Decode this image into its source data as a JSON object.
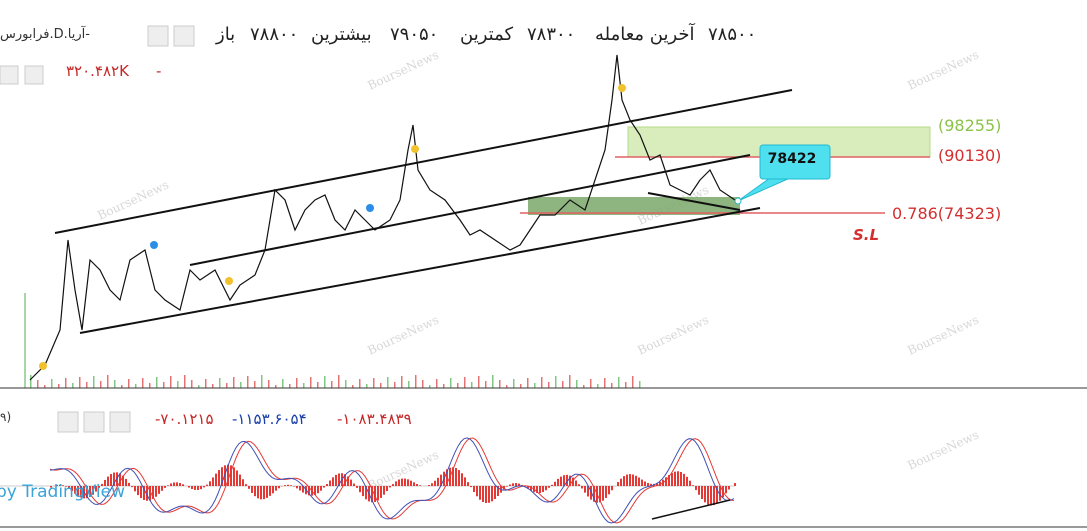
{
  "header": {
    "ticker": "فرابورس.D.آریا-",
    "open_value": "۷۸۸۰۰",
    "open_label": "باز",
    "high_value": "۷۹۰۵۰",
    "high_label": "بیشترین",
    "low_value": "۷۸۳۰۰",
    "low_label": "کمترین",
    "last_value": "۷۸۵۰۰",
    "last_label": "آخرین معامله"
  },
  "volume": {
    "value": "۳۲۰.۴۸۲K",
    "dash": "-"
  },
  "annotations": {
    "target_high": "(98255)",
    "target_low": "(90130)",
    "stop_level": "0.786(74323)",
    "stop_label": "S.L",
    "callout": "78422"
  },
  "oscillator": {
    "param": "۹)",
    "value_1": "-۷۰.۱۲۱۵",
    "value_2": "-۱۱۵۳.۶۰۵۴",
    "value_3": "-۱۰۸۳.۴۸۳۹"
  },
  "footer": {
    "brand": "by TradingView"
  },
  "watermark": "BourseNews"
}
